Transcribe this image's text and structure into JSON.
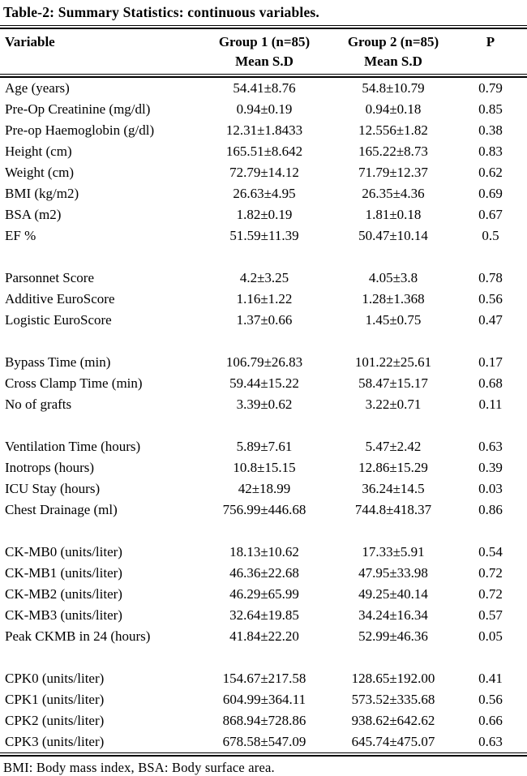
{
  "colors": {
    "text": "#000000",
    "background": "#ffffff",
    "rule": "#000000"
  },
  "title": "Table-2: Summary Statistics: continuous variables.",
  "footnote": "BMI: Body mass index, BSA: Body surface area.",
  "table": {
    "header": {
      "variable": "Variable",
      "group1": "Group 1 (n=85)",
      "group2": "Group 2 (n=85)",
      "p": "P",
      "mean_sd": "Mean S.D"
    },
    "sections": [
      {
        "rows": [
          [
            "Age (years)",
            "54.41±8.76",
            "54.8±10.79",
            "0.79"
          ],
          [
            "Pre-Op Creatinine (mg/dl)",
            "0.94±0.19",
            "0.94±0.18",
            "0.85"
          ],
          [
            "Pre-op Haemoglobin (g/dl)",
            "12.31±1.8433",
            "12.556±1.82",
            "0.38"
          ],
          [
            "Height (cm)",
            "165.51±8.642",
            "165.22±8.73",
            "0.83"
          ],
          [
            "Weight (cm)",
            "72.79±14.12",
            "71.79±12.37",
            "0.62"
          ],
          [
            "BMI (kg/m2)",
            "26.63±4.95",
            "26.35±4.36",
            "0.69"
          ],
          [
            "BSA (m2)",
            "1.82±0.19",
            "1.81±0.18",
            "0.67"
          ],
          [
            "EF %",
            "51.59±11.39",
            "50.47±10.14",
            "0.5"
          ]
        ]
      },
      {
        "rows": [
          [
            "Parsonnet Score",
            "4.2±3.25",
            "4.05±3.8",
            "0.78"
          ],
          [
            "Additive EuroScore",
            "1.16±1.22",
            "1.28±1.368",
            "0.56"
          ],
          [
            "Logistic EuroScore",
            "1.37±0.66",
            "1.45±0.75",
            "0.47"
          ]
        ]
      },
      {
        "rows": [
          [
            "Bypass Time (min)",
            "106.79±26.83",
            "101.22±25.61",
            "0.17"
          ],
          [
            "Cross Clamp Time (min)",
            "59.44±15.22",
            "58.47±15.17",
            "0.68"
          ],
          [
            "No of grafts",
            "3.39±0.62",
            "3.22±0.71",
            "0.11"
          ]
        ]
      },
      {
        "rows": [
          [
            "Ventilation Time (hours)",
            "5.89±7.61",
            "5.47±2.42",
            "0.63"
          ],
          [
            "Inotrops (hours)",
            "10.8±15.15",
            "12.86±15.29",
            "0.39"
          ],
          [
            "ICU Stay (hours)",
            "42±18.99",
            "36.24±14.5",
            "0.03"
          ],
          [
            "Chest Drainage (ml)",
            "756.99±446.68",
            "744.8±418.37",
            "0.86"
          ]
        ]
      },
      {
        "rows": [
          [
            "CK-MB0 (units/liter)",
            "18.13±10.62",
            "17.33±5.91",
            "0.54"
          ],
          [
            "CK-MB1 (units/liter)",
            "46.36±22.68",
            "47.95±33.98",
            "0.72"
          ],
          [
            "CK-MB2 (units/liter)",
            "46.29±65.99",
            "49.25±40.14",
            "0.72"
          ],
          [
            "CK-MB3 (units/liter)",
            "32.64±19.85",
            "34.24±16.34",
            "0.57"
          ],
          [
            "Peak CKMB in 24 (hours)",
            "41.84±22.20",
            "52.99±46.36",
            "0.05"
          ]
        ]
      },
      {
        "rows": [
          [
            "CPK0 (units/liter)",
            "154.67±217.58",
            "128.65±192.00",
            "0.41"
          ],
          [
            "CPK1 (units/liter)",
            "604.99±364.11",
            "573.52±335.68",
            "0.56"
          ],
          [
            "CPK2 (units/liter)",
            "868.94±728.86",
            "938.62±642.62",
            "0.66"
          ],
          [
            "CPK3 (units/liter)",
            "678.58±547.09",
            "645.74±475.07",
            "0.63"
          ]
        ]
      }
    ]
  }
}
